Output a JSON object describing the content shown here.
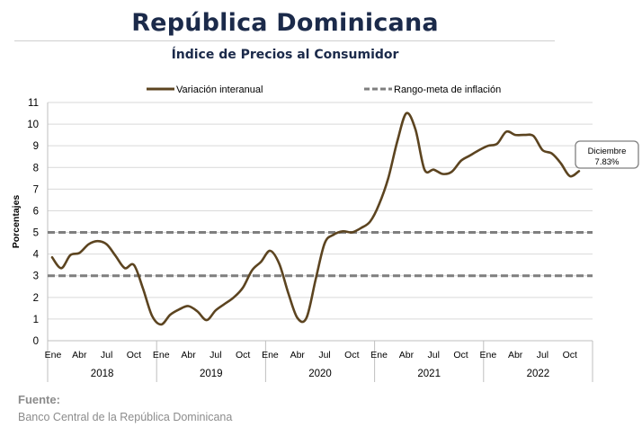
{
  "header": {
    "title": "República Dominicana",
    "subtitle": "Índice de Precios al Consumidor"
  },
  "source": {
    "label": "Fuente:",
    "text": "Banco Central de la República Dominicana"
  },
  "chart_data": {
    "type": "line",
    "title": "Índice de Precios al Consumidor",
    "ylabel": "Porcentajes",
    "xlabel": "",
    "ylim": [
      0,
      11
    ],
    "yticks": [
      0,
      1,
      2,
      3,
      4,
      5,
      6,
      7,
      8,
      9,
      10,
      11
    ],
    "grid": true,
    "legend_position": "top",
    "month_ticks": [
      "Ene",
      "Abr",
      "Jul",
      "Oct"
    ],
    "years": [
      "2018",
      "2019",
      "2020",
      "2021",
      "2022"
    ],
    "series": [
      {
        "name": "Variación interanual",
        "color": "#5c4420",
        "style": "solid",
        "values": [
          3.85,
          3.35,
          3.95,
          4.05,
          4.45,
          4.6,
          4.45,
          3.9,
          3.35,
          3.5,
          2.4,
          1.15,
          0.75,
          1.2,
          1.45,
          1.6,
          1.35,
          0.95,
          1.4,
          1.7,
          2.0,
          2.45,
          3.25,
          3.65,
          4.15,
          3.55,
          2.2,
          1.05,
          1.05,
          2.8,
          4.5,
          4.9,
          5.05,
          5.0,
          5.2,
          5.5,
          6.3,
          7.5,
          9.2,
          10.5,
          9.75,
          7.9,
          7.9,
          7.7,
          7.8,
          8.3,
          8.55,
          8.8,
          9.0,
          9.1,
          9.65,
          9.5,
          9.5,
          9.45,
          8.8,
          8.65,
          8.2,
          7.6,
          7.83
        ]
      },
      {
        "name": "Rango-meta de inflación",
        "color": "#7f7f7f",
        "style": "dashed",
        "bands": [
          3,
          5
        ]
      }
    ],
    "annotation": {
      "line1": "Diciembre",
      "line2": "7.83%"
    }
  }
}
